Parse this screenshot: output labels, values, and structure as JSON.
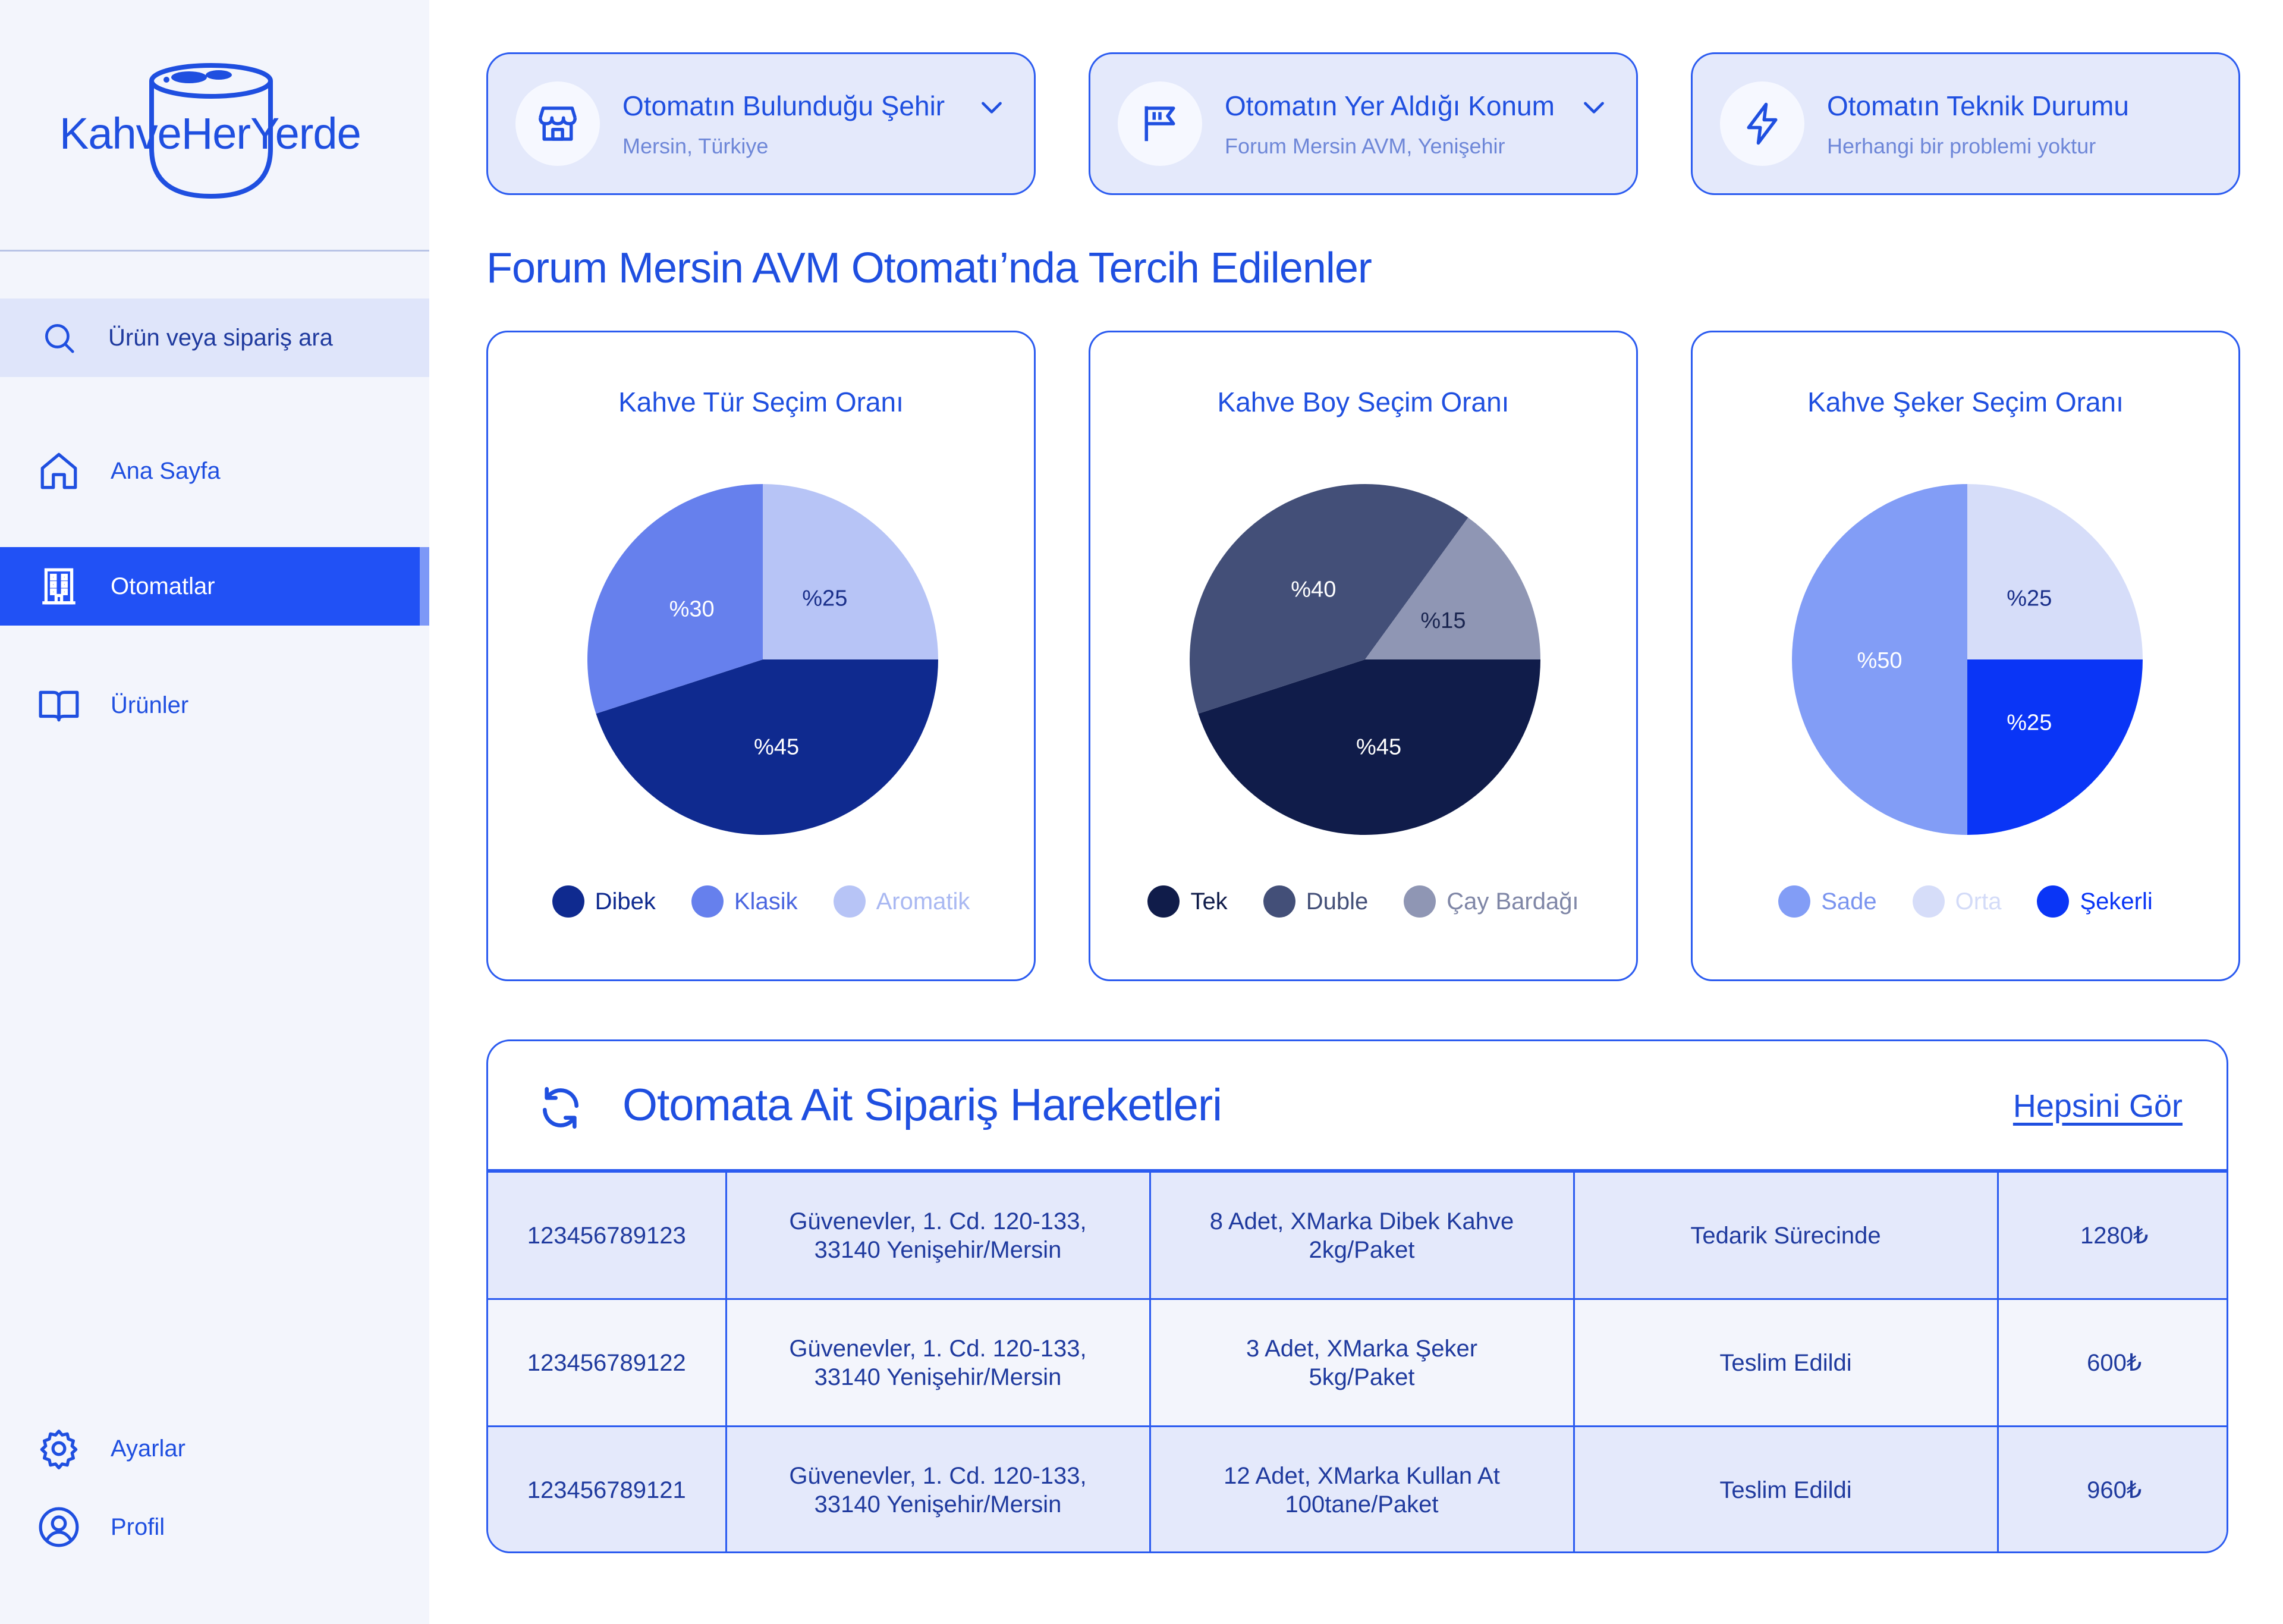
{
  "brand": {
    "name": "KahveHerYerde"
  },
  "sidebar": {
    "search_placeholder": "Ürün veya sipariş ara",
    "items": [
      {
        "label": "Ana Sayfa",
        "icon": "home-icon"
      },
      {
        "label": "Otomatlar",
        "icon": "building-icon",
        "active": true
      },
      {
        "label": "Ürünler",
        "icon": "book-icon"
      }
    ],
    "bottom_items": [
      {
        "label": "Ayarlar",
        "icon": "gear-icon"
      },
      {
        "label": "Profil",
        "icon": "user-circle-icon"
      }
    ]
  },
  "info_cards": [
    {
      "title": "Otomatın Bulunduğu Şehir",
      "subtitle": "Mersin, Türkiye",
      "icon": "store-icon",
      "has_dropdown": true
    },
    {
      "title": "Otomatın Yer Aldığı Konum",
      "subtitle": "Forum Mersin AVM, Yenişehir",
      "icon": "flag-icon",
      "has_dropdown": true
    },
    {
      "title": "Otomatın Teknik Durumu",
      "subtitle": "Herhangi bir problemi yoktur",
      "icon": "lightning-icon",
      "has_dropdown": false
    }
  ],
  "section_title": "Forum Mersin AVM Otomatı’nda Tercih Edilenler",
  "chart_data": [
    {
      "type": "pie",
      "title": "Kahve Tür Seçim Oranı",
      "slices": [
        {
          "name": "Dibek",
          "value": 45,
          "label": "%45",
          "color": "#0f2a8f",
          "label_color": "#ffffff"
        },
        {
          "name": "Klasik",
          "value": 30,
          "label": "%30",
          "color": "#6680ed",
          "label_color": "#ffffff"
        },
        {
          "name": "Aromatik",
          "value": 25,
          "label": "%25",
          "color": "#b7c4f6",
          "label_color": "#1a2f8a"
        }
      ],
      "legend": [
        {
          "name": "Dibek",
          "color": "#0f2a8f",
          "text_color": "#0f2a8f"
        },
        {
          "name": "Klasik",
          "color": "#6680ed",
          "text_color": "#4a66e0"
        },
        {
          "name": "Aromatik",
          "color": "#b7c4f6",
          "text_color": "#a9b8f2"
        }
      ]
    },
    {
      "type": "pie",
      "title": "Kahve Boy Seçim Oranı",
      "slices": [
        {
          "name": "Tek",
          "value": 45,
          "label": "%45",
          "color": "#101c4a",
          "label_color": "#ffffff"
        },
        {
          "name": "Duble",
          "value": 40,
          "label": "%40",
          "color": "#434f78",
          "label_color": "#ffffff"
        },
        {
          "name": "Çay Bardağı",
          "value": 15,
          "label": "%15",
          "color": "#8f96b4",
          "label_color": "#1a2550"
        }
      ],
      "legend": [
        {
          "name": "Tek",
          "color": "#101c4a",
          "text_color": "#101c4a"
        },
        {
          "name": "Duble",
          "color": "#434f78",
          "text_color": "#434f78"
        },
        {
          "name": "Çay Bardağı",
          "color": "#8f96b4",
          "text_color": "#7f86a6"
        }
      ]
    },
    {
      "type": "pie",
      "title": "Kahve Şeker Seçim Oranı",
      "slices": [
        {
          "name": "Şekerli",
          "value": 25,
          "label": "%25",
          "color": "#0a35f6",
          "label_color": "#ffffff"
        },
        {
          "name": "Sade",
          "value": 50,
          "label": "%50",
          "color": "#829df6",
          "label_color": "#ffffff"
        },
        {
          "name": "Orta",
          "value": 25,
          "label": "%25",
          "color": "#d6ddf9",
          "label_color": "#1a2f8a"
        }
      ],
      "legend": [
        {
          "name": "Sade",
          "color": "#829df6",
          "text_color": "#7a94ef"
        },
        {
          "name": "Orta",
          "color": "#d6ddf9",
          "text_color": "#d3dbf8"
        },
        {
          "name": "Şekerli",
          "color": "#0a35f6",
          "text_color": "#0a35f6"
        }
      ]
    }
  ],
  "orders": {
    "title": "Otomata Ait Sipariş Hareketleri",
    "see_all": "Hepsini Gör",
    "rows": [
      {
        "id": "123456789123",
        "address_1": "Güvenevler, 1. Cd. 120-133,",
        "address_2": "33140 Yenişehir/Mersin",
        "product_1": "8 Adet, XMarka Dibek Kahve",
        "product_2": "2kg/Paket",
        "status": "Tedarik Sürecinde",
        "price": "1280₺"
      },
      {
        "id": "123456789122",
        "address_1": "Güvenevler, 1. Cd. 120-133,",
        "address_2": "33140 Yenişehir/Mersin",
        "product_1": "3 Adet, XMarka Şeker",
        "product_2": "5kg/Paket",
        "status": "Teslim Edildi",
        "price": "600₺"
      },
      {
        "id": "123456789121",
        "address_1": "Güvenevler, 1. Cd. 120-133,",
        "address_2": "33140 Yenişehir/Mersin",
        "product_1": "12 Adet, XMarka Kullan At",
        "product_2": "100tane/Paket",
        "status": "Teslim Edildi",
        "price": "960₺"
      }
    ]
  }
}
